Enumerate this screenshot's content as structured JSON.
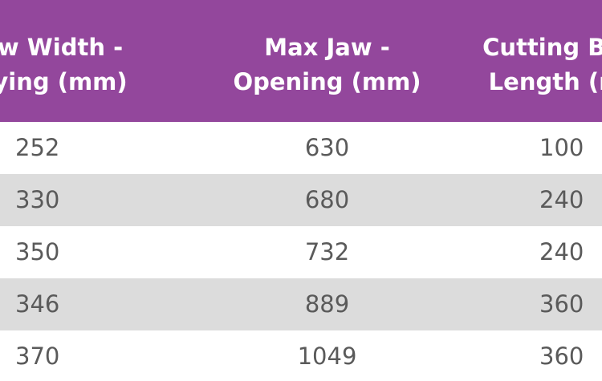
{
  "header": {
    "col_0": [
      "w Width -",
      "ying (mm)"
    ],
    "col_1": [
      "Max Jaw -",
      "Opening (mm)"
    ],
    "col_2": [
      "Cutting Bla",
      "Length (m"
    ]
  },
  "rows": [
    {
      "c0": "252",
      "c1": "630",
      "c2": "100"
    },
    {
      "c0": "330",
      "c1": "680",
      "c2": "240"
    },
    {
      "c0": "350",
      "c1": "732",
      "c2": "240"
    },
    {
      "c0": "346",
      "c1": "889",
      "c2": "360"
    },
    {
      "c0": "370",
      "c1": "1049",
      "c2": "360"
    }
  ],
  "colors": {
    "header_bg": "#93479c",
    "header_text": "#ffffff",
    "row_shade": "#dcdcdc",
    "body_text": "#5a5a5a"
  }
}
